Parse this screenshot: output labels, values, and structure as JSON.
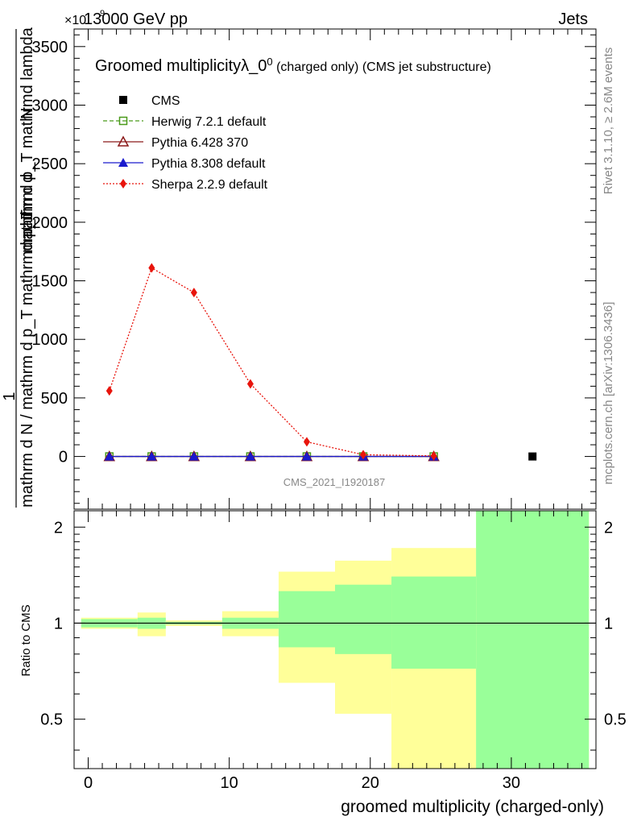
{
  "header": {
    "left": "13000 GeV pp",
    "right": "Jets",
    "exponent": "×10",
    "exponent_power": "9"
  },
  "side_labels": {
    "rivet": "Rivet 3.1.10, ≥ 2.6M events",
    "mcplots": "mcplots.cern.ch [arXiv:1306.3436]"
  },
  "chart_data": [
    {
      "type": "line",
      "title": "Groomed multiplicityλ_0",
      "title_sup": "0",
      "title_suffix": " (charged only) (CMS jet substructure)",
      "ylabel_numerator_1": "mathrm d",
      "ylabel_numerator_2": "N",
      "ylabel_numerator_3": "mathrm d p_T mathrmd lambda",
      "ylabel_one": "1",
      "ylabel_denominator": "mathrm d N / mathrm d p_T mathrmd p_T",
      "watermark": "CMS_2021_I1920187",
      "y_scale_exponent": 9,
      "ylim": [
        -450,
        3650
      ],
      "xlim": [
        -1,
        36
      ],
      "y_ticks": [
        0,
        500,
        1000,
        1500,
        2000,
        2500,
        3000,
        3500
      ],
      "y_tick_labels": [
        "0",
        "500",
        "1000",
        "1500",
        "2000",
        "2500",
        "3000",
        "3500"
      ],
      "series": [
        {
          "name": "CMS",
          "color": "#000000",
          "marker": "square-filled",
          "line": "none",
          "x": [
            31.5
          ],
          "y": [
            0
          ]
        },
        {
          "name": "Herwig 7.2.1 default",
          "color": "#4a9a1a",
          "marker": "square-open",
          "line": "dashed",
          "x": [
            1.5,
            4.5,
            7.5,
            11.5,
            15.5,
            19.5,
            24.5
          ],
          "y": [
            0,
            0,
            0,
            0,
            0,
            0,
            0
          ]
        },
        {
          "name": "Pythia 6.428 370",
          "color": "#8b1a1a",
          "marker": "triangle-open",
          "line": "solid",
          "x": [
            1.5,
            4.5,
            7.5,
            11.5,
            15.5,
            19.5,
            24.5
          ],
          "y": [
            0,
            0,
            0,
            0,
            0,
            0,
            0
          ]
        },
        {
          "name": "Pythia 8.308 default",
          "color": "#1a1acd",
          "marker": "triangle-filled",
          "line": "solid",
          "x": [
            1.5,
            4.5,
            7.5,
            11.5,
            15.5,
            19.5,
            24.5
          ],
          "y": [
            0,
            0,
            0,
            0,
            0,
            0,
            0
          ]
        },
        {
          "name": "Sherpa 2.2.9 default",
          "color": "#e8140c",
          "marker": "diamond-filled",
          "line": "dotted",
          "x": [
            1.5,
            4.5,
            7.5,
            11.5,
            15.5,
            19.5,
            24.5
          ],
          "y": [
            560,
            1610,
            1400,
            620,
            125,
            15,
            5
          ]
        }
      ]
    },
    {
      "type": "area",
      "ylabel": "Ratio to CMS",
      "xlabel": "groomed multiplicity (charged-only)",
      "xlim": [
        -1,
        36
      ],
      "ylim": [
        0.35,
        2.25
      ],
      "x_ticks": [
        0,
        10,
        20,
        30
      ],
      "x_tick_labels": [
        "0",
        "10",
        "20",
        "30"
      ],
      "y_ticks": [
        0.5,
        1,
        2
      ],
      "y_tick_labels": [
        "0.5",
        "1",
        "2"
      ],
      "reference": 1,
      "bands": [
        {
          "x": [
            -0.5,
            3.5
          ],
          "total": [
            0.96,
            1.04
          ],
          "stat": [
            0.97,
            1.03
          ]
        },
        {
          "x": [
            3.5,
            5.5
          ],
          "total": [
            0.91,
            1.08
          ],
          "stat": [
            0.96,
            1.04
          ]
        },
        {
          "x": [
            5.5,
            9.5
          ],
          "total": [
            0.98,
            1.02
          ],
          "stat": [
            0.99,
            1.01
          ]
        },
        {
          "x": [
            9.5,
            13.5
          ],
          "total": [
            0.91,
            1.09
          ],
          "stat": [
            0.96,
            1.04
          ]
        },
        {
          "x": [
            13.5,
            17.5
          ],
          "total": [
            0.65,
            1.45
          ],
          "stat": [
            0.84,
            1.26
          ]
        },
        {
          "x": [
            17.5,
            21.5
          ],
          "total": [
            0.52,
            1.57
          ],
          "stat": [
            0.8,
            1.32
          ]
        },
        {
          "x": [
            21.5,
            27.5
          ],
          "total": [
            0.35,
            1.72
          ],
          "stat": [
            0.72,
            1.4
          ]
        },
        {
          "x": [
            27.5,
            35.5
          ],
          "total": [
            0.35,
            2.25
          ],
          "stat": [
            0.35,
            2.25
          ]
        }
      ]
    }
  ],
  "colors": {
    "band_total": "#ffff99",
    "band_stat": "#99ff99"
  }
}
